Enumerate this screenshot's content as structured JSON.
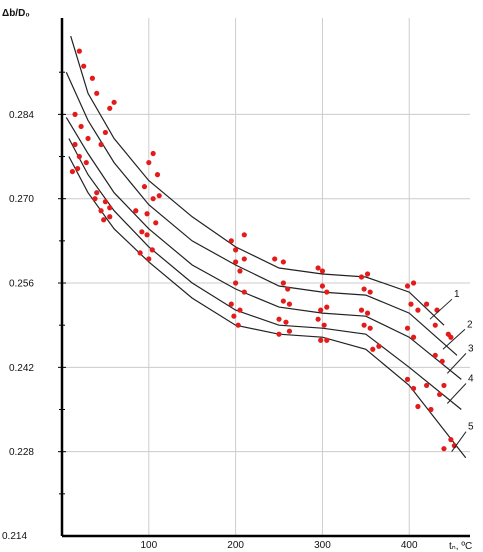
{
  "chart_data": {
    "type": "scatter",
    "title": "",
    "xlabel": "tₙ, ºC",
    "ylabel": "Δb/D₀",
    "xlim": [
      0,
      470
    ],
    "ylim": [
      0.214,
      0.3
    ],
    "grid": true,
    "x_ticks": [
      100,
      200,
      300,
      400
    ],
    "x_tick_labels": [
      "100",
      "200",
      "300",
      "400"
    ],
    "y_ticks": [
      0.228,
      0.242,
      0.256,
      0.27,
      0.284
    ],
    "y_tick_labels": [
      "0.228",
      "0.242",
      "0.256",
      "0.270",
      "0.284"
    ],
    "y_min_label": "0.214",
    "colors": {
      "points": "#e31b1b",
      "lines": "#222222",
      "grid": "#cccccc",
      "axis": "#000000"
    },
    "series": [
      {
        "name": "1",
        "line_x": [
          10,
          30,
          60,
          100,
          150,
          200,
          250,
          300,
          350,
          400,
          440
        ],
        "line_y": [
          0.297,
          0.2875,
          0.28,
          0.273,
          0.267,
          0.262,
          0.2585,
          0.2575,
          0.257,
          0.2545,
          0.249
        ],
        "points": [
          [
            20,
            0.2945
          ],
          [
            25,
            0.292
          ],
          [
            35,
            0.29
          ],
          [
            40,
            0.2875
          ],
          [
            55,
            0.285
          ],
          [
            60,
            0.286
          ],
          [
            100,
            0.276
          ],
          [
            105,
            0.2775
          ],
          [
            110,
            0.274
          ],
          [
            195,
            0.263
          ],
          [
            200,
            0.2615
          ],
          [
            210,
            0.264
          ],
          [
            245,
            0.26
          ],
          [
            255,
            0.2595
          ],
          [
            295,
            0.2585
          ],
          [
            300,
            0.258
          ],
          [
            345,
            0.257
          ],
          [
            352,
            0.2575
          ],
          [
            398,
            0.2555
          ],
          [
            405,
            0.256
          ],
          [
            420,
            0.2525
          ],
          [
            432,
            0.2515
          ]
        ]
      },
      {
        "name": "2",
        "line_x": [
          5,
          30,
          60,
          100,
          150,
          200,
          250,
          300,
          350,
          400,
          455
        ],
        "line_y": [
          0.291,
          0.283,
          0.276,
          0.269,
          0.263,
          0.259,
          0.2555,
          0.2545,
          0.254,
          0.251,
          0.244
        ],
        "points": [
          [
            15,
            0.284
          ],
          [
            22,
            0.282
          ],
          [
            30,
            0.28
          ],
          [
            45,
            0.279
          ],
          [
            50,
            0.281
          ],
          [
            95,
            0.272
          ],
          [
            105,
            0.27
          ],
          [
            112,
            0.2705
          ],
          [
            200,
            0.2595
          ],
          [
            205,
            0.258
          ],
          [
            210,
            0.26
          ],
          [
            255,
            0.256
          ],
          [
            260,
            0.255
          ],
          [
            300,
            0.2555
          ],
          [
            305,
            0.2545
          ],
          [
            348,
            0.255
          ],
          [
            355,
            0.2545
          ],
          [
            402,
            0.2525
          ],
          [
            410,
            0.2515
          ],
          [
            430,
            0.249
          ],
          [
            445,
            0.2475
          ],
          [
            448,
            0.247
          ]
        ]
      },
      {
        "name": "3",
        "line_x": [
          5,
          30,
          60,
          100,
          150,
          200,
          250,
          300,
          350,
          400,
          460
        ],
        "line_y": [
          0.2835,
          0.2775,
          0.271,
          0.265,
          0.259,
          0.255,
          0.252,
          0.251,
          0.2505,
          0.247,
          0.24
        ],
        "points": [
          [
            15,
            0.279
          ],
          [
            20,
            0.277
          ],
          [
            28,
            0.276
          ],
          [
            40,
            0.271
          ],
          [
            50,
            0.2695
          ],
          [
            98,
            0.2675
          ],
          [
            108,
            0.266
          ],
          [
            200,
            0.256
          ],
          [
            210,
            0.2545
          ],
          [
            255,
            0.253
          ],
          [
            262,
            0.2525
          ],
          [
            298,
            0.2515
          ],
          [
            305,
            0.252
          ],
          [
            345,
            0.2515
          ],
          [
            352,
            0.251
          ],
          [
            398,
            0.2485
          ],
          [
            405,
            0.247
          ],
          [
            430,
            0.244
          ],
          [
            438,
            0.243
          ]
        ]
      },
      {
        "name": "4",
        "line_x": [
          8,
          30,
          60,
          100,
          150,
          200,
          250,
          300,
          350,
          400,
          460
        ],
        "line_y": [
          0.28,
          0.274,
          0.268,
          0.262,
          0.256,
          0.2515,
          0.249,
          0.2485,
          0.2475,
          0.242,
          0.235
        ],
        "points": [
          [
            12,
            0.2745
          ],
          [
            18,
            0.275
          ],
          [
            45,
            0.268
          ],
          [
            55,
            0.2685
          ],
          [
            85,
            0.268
          ],
          [
            92,
            0.2645
          ],
          [
            98,
            0.264
          ],
          [
            195,
            0.2525
          ],
          [
            205,
            0.2515
          ],
          [
            250,
            0.25
          ],
          [
            258,
            0.2495
          ],
          [
            295,
            0.25
          ],
          [
            302,
            0.249
          ],
          [
            348,
            0.249
          ],
          [
            355,
            0.2485
          ],
          [
            398,
            0.24
          ],
          [
            405,
            0.2385
          ],
          [
            420,
            0.239
          ],
          [
            435,
            0.2375
          ],
          [
            440,
            0.239
          ]
        ]
      },
      {
        "name": "5",
        "line_x": [
          8,
          30,
          60,
          100,
          150,
          200,
          250,
          300,
          350,
          400,
          465
        ],
        "line_y": [
          0.277,
          0.271,
          0.265,
          0.2595,
          0.2535,
          0.249,
          0.2475,
          0.247,
          0.245,
          0.239,
          0.227
        ],
        "points": [
          [
            38,
            0.27
          ],
          [
            48,
            0.2665
          ],
          [
            55,
            0.267
          ],
          [
            90,
            0.261
          ],
          [
            100,
            0.26
          ],
          [
            104,
            0.2615
          ],
          [
            198,
            0.2505
          ],
          [
            203,
            0.249
          ],
          [
            250,
            0.2475
          ],
          [
            262,
            0.248
          ],
          [
            298,
            0.2465
          ],
          [
            305,
            0.2465
          ],
          [
            358,
            0.245
          ],
          [
            365,
            0.2455
          ],
          [
            410,
            0.2355
          ],
          [
            425,
            0.235
          ],
          [
            440,
            0.2285
          ],
          [
            448,
            0.23
          ],
          [
            452,
            0.229
          ]
        ]
      }
    ]
  }
}
